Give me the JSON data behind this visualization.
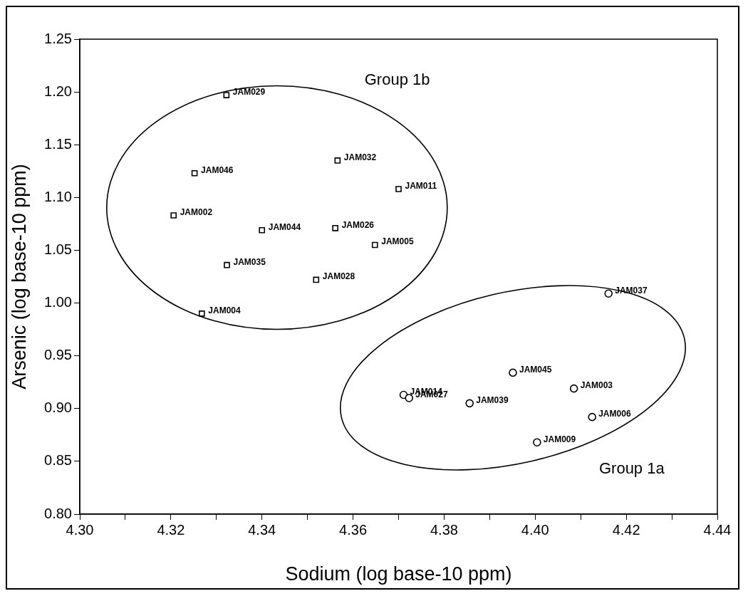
{
  "chart_data": {
    "type": "scatter",
    "xlabel": "Sodium (log base-10 ppm)",
    "ylabel": "Arsenic (log base-10 ppm)",
    "xlim": [
      4.3,
      4.44
    ],
    "ylim": [
      0.8,
      1.25
    ],
    "xticks": [
      {
        "value": 4.3,
        "label": "4.30"
      },
      {
        "value": 4.31,
        "label": null
      },
      {
        "value": 4.32,
        "label": "4.32"
      },
      {
        "value": 4.33,
        "label": null
      },
      {
        "value": 4.34,
        "label": "4.34"
      },
      {
        "value": 4.35,
        "label": null
      },
      {
        "value": 4.36,
        "label": "4.36"
      },
      {
        "value": 4.37,
        "label": null
      },
      {
        "value": 4.38,
        "label": "4.38"
      },
      {
        "value": 4.39,
        "label": null
      },
      {
        "value": 4.4,
        "label": "4.40"
      },
      {
        "value": 4.41,
        "label": null
      },
      {
        "value": 4.42,
        "label": "4.42"
      },
      {
        "value": 4.43,
        "label": null
      },
      {
        "value": 4.44,
        "label": "4.44"
      }
    ],
    "yticks": [
      {
        "value": 0.8,
        "label": "0.80"
      },
      {
        "value": 0.85,
        "label": "0.85"
      },
      {
        "value": 0.9,
        "label": "0.90"
      },
      {
        "value": 0.95,
        "label": "0.95"
      },
      {
        "value": 1.0,
        "label": "1.00"
      },
      {
        "value": 1.05,
        "label": "1.05"
      },
      {
        "value": 1.1,
        "label": "1.10"
      },
      {
        "value": 1.15,
        "label": "1.15"
      },
      {
        "value": 1.2,
        "label": "1.20"
      },
      {
        "value": 1.25,
        "label": "1.25"
      }
    ],
    "grid": false,
    "legend": false,
    "series": [
      {
        "color": "#000000",
        "marker": "square",
        "x": [
          4.3322,
          4.3252,
          4.3566,
          4.37,
          4.3206,
          4.34,
          4.3561,
          4.3648,
          4.3323,
          4.3519,
          4.3268
        ],
        "values": [
          1.197,
          1.123,
          1.135,
          1.108,
          1.083,
          1.069,
          1.071,
          1.055,
          1.036,
          1.022,
          0.99
        ]
      },
      {
        "color": "#000000",
        "marker": "circle",
        "x": [
          4.4161,
          4.3951,
          4.3711,
          4.3723,
          4.3856,
          4.4085,
          4.4125,
          4.4004
        ],
        "values": [
          1.009,
          0.934,
          0.913,
          0.91,
          0.905,
          0.919,
          0.892,
          0.868
        ]
      }
    ],
    "annotations": [
      "Group 1b",
      "Group 1a",
      {
        "text": "JAM029",
        "x": 4.3322,
        "y": 1.197
      },
      {
        "text": "JAM046",
        "x": 4.3252,
        "y": 1.123
      },
      {
        "text": "JAM032",
        "x": 4.3566,
        "y": 1.135
      },
      {
        "text": "JAM011",
        "x": 4.37,
        "y": 1.108
      },
      {
        "text": "JAM002",
        "x": 4.3206,
        "y": 1.083
      },
      {
        "text": "JAM044",
        "x": 4.34,
        "y": 1.069
      },
      {
        "text": "JAM026",
        "x": 4.3561,
        "y": 1.071
      },
      {
        "text": "JAM005",
        "x": 4.3648,
        "y": 1.055
      },
      {
        "text": "JAM035",
        "x": 4.3323,
        "y": 1.036
      },
      {
        "text": "JAM028",
        "x": 4.3519,
        "y": 1.022
      },
      {
        "text": "JAM004",
        "x": 4.3268,
        "y": 0.99
      },
      {
        "text": "JAM037",
        "x": 4.4161,
        "y": 1.009
      },
      {
        "text": "JAM045",
        "x": 4.3951,
        "y": 0.934
      },
      {
        "text": "JAM014",
        "x": 4.3711,
        "y": 0.913
      },
      {
        "text": "JAM027",
        "x": 4.3723,
        "y": 0.91
      },
      {
        "text": "JAM039",
        "x": 4.3856,
        "y": 0.905
      },
      {
        "text": "JAM003",
        "x": 4.4085,
        "y": 0.919
      },
      {
        "text": "JAM006",
        "x": 4.4125,
        "y": 0.892
      },
      {
        "text": "JAM009",
        "x": 4.4004,
        "y": 0.868
      }
    ]
  }
}
